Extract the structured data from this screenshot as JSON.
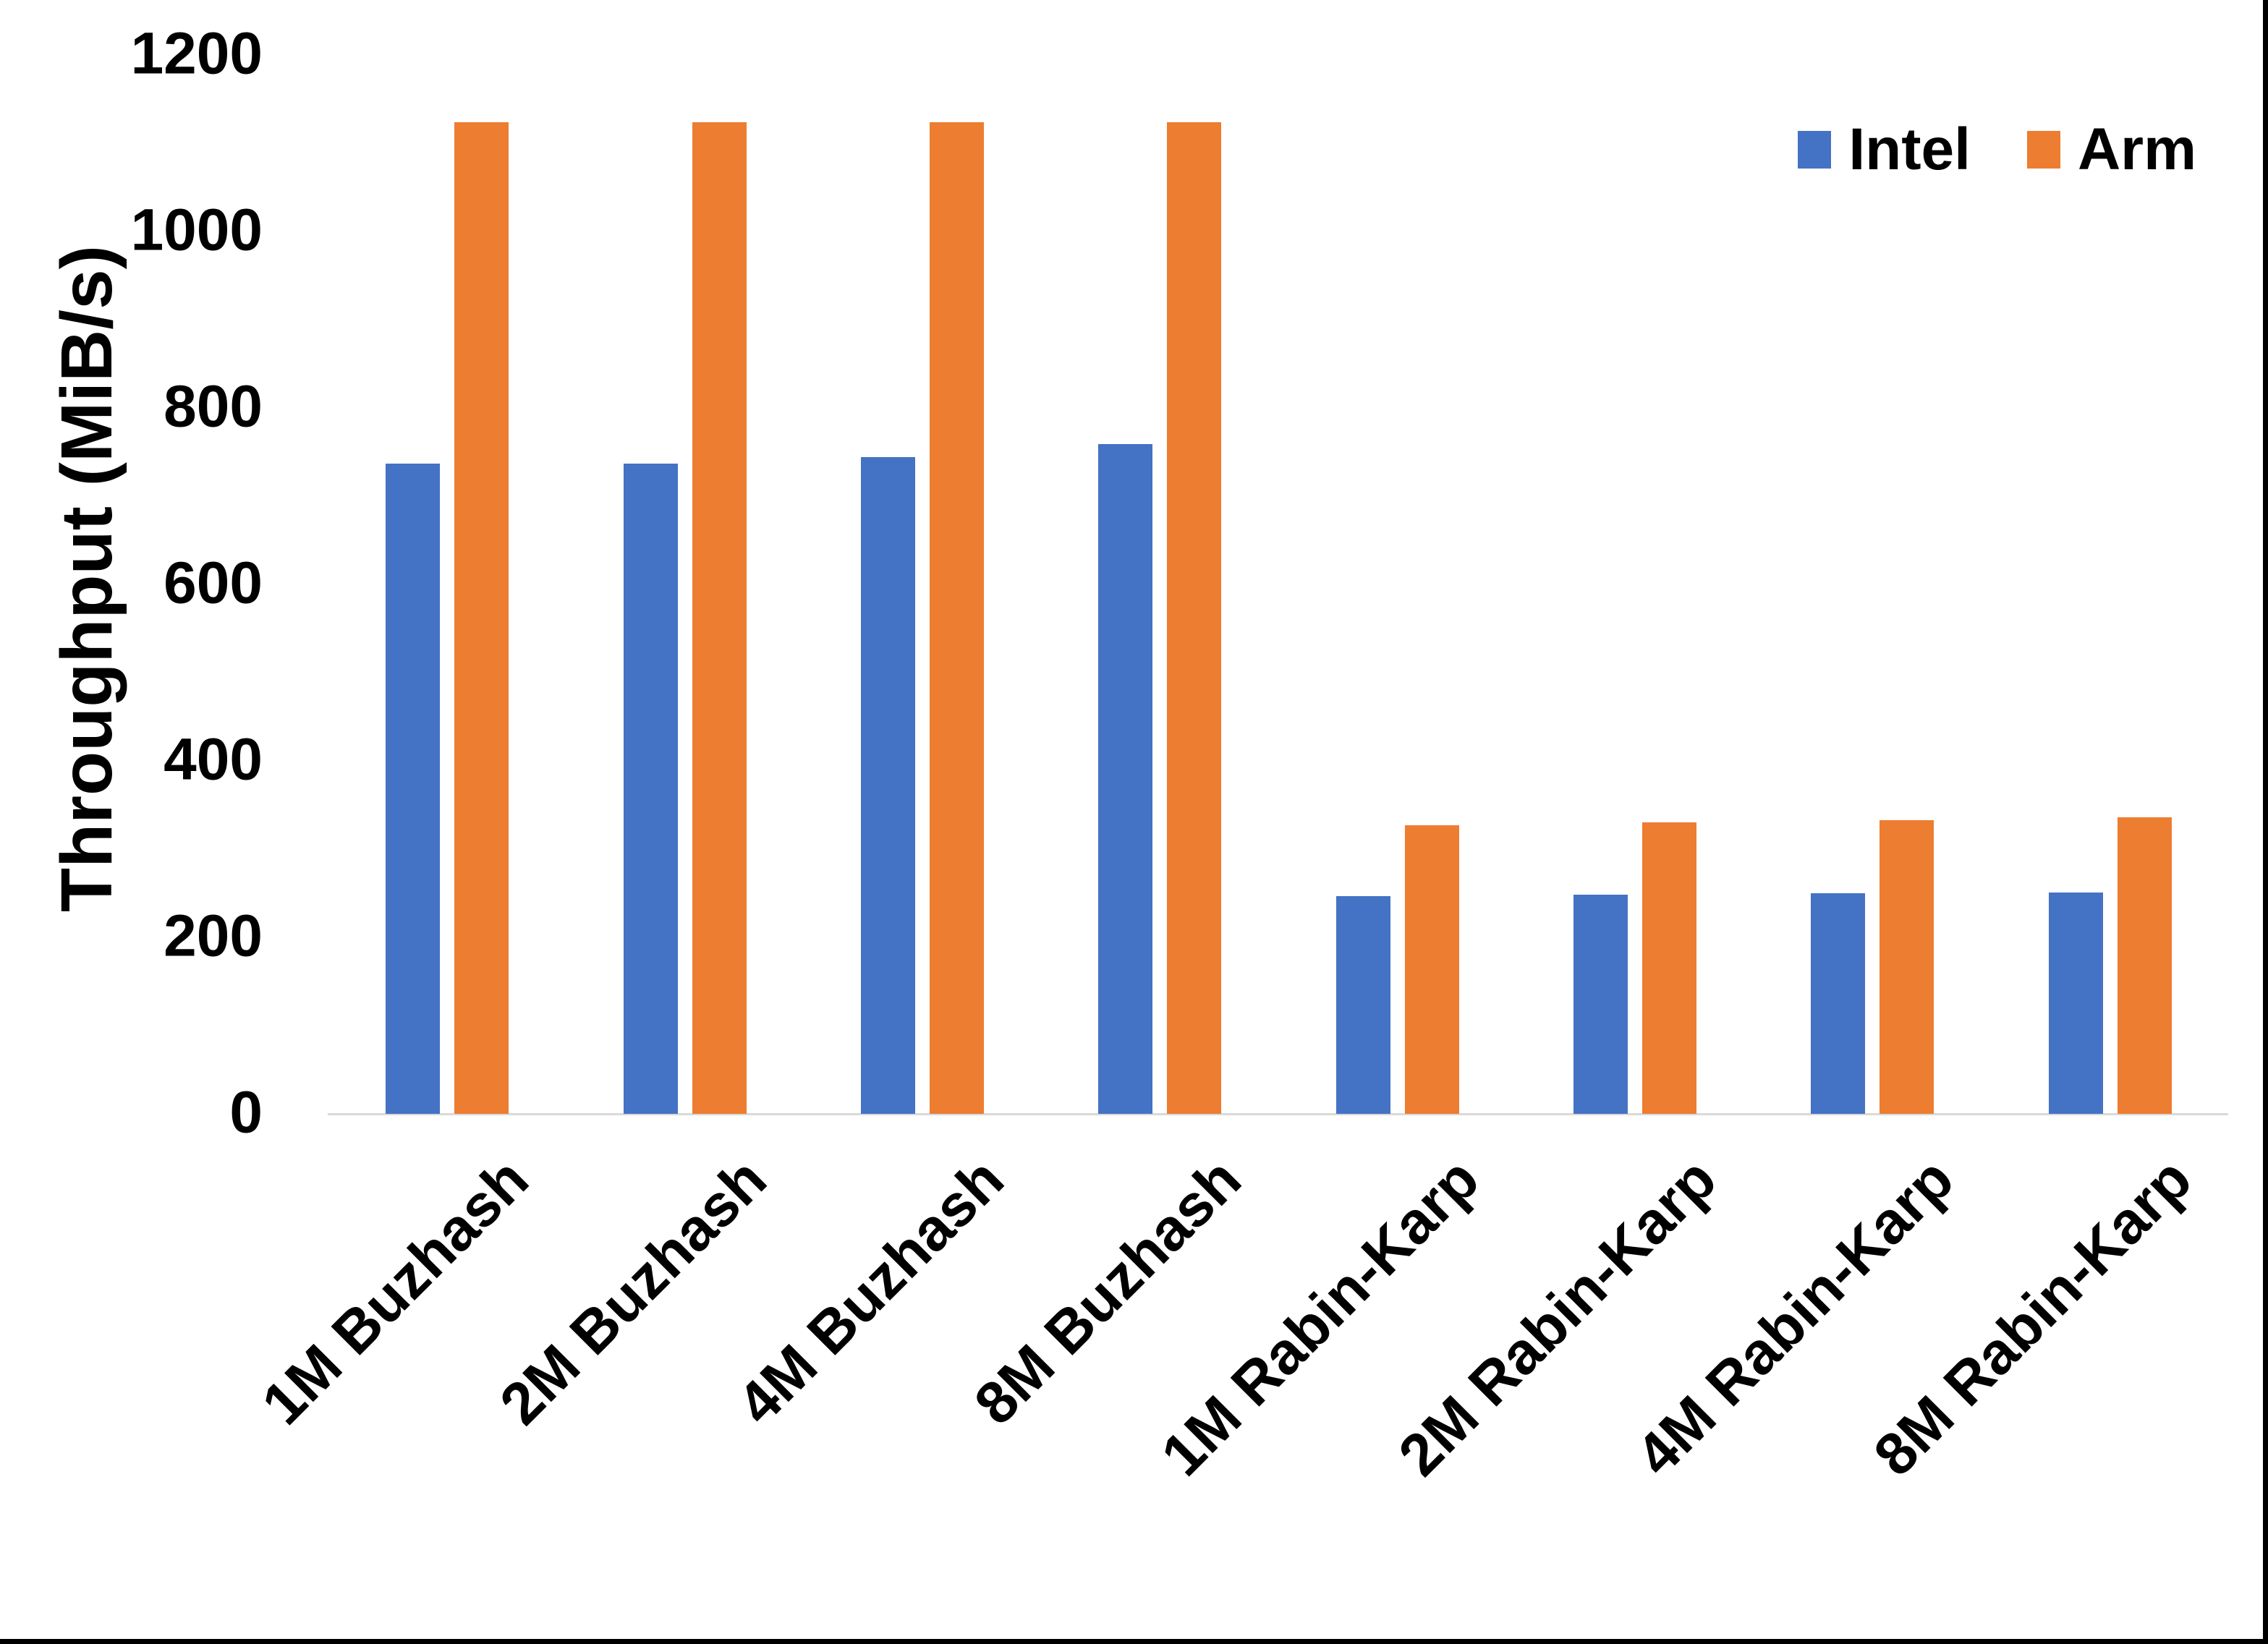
{
  "chart_data": {
    "type": "bar",
    "title": "",
    "ylabel": "Throughput (MiB/s)",
    "categories": [
      "1M Buzhash",
      "2M Buzhash",
      "4M Buzhash",
      "8M Buzhash",
      "1M Rabin-Karp",
      "2M Rabin-Karp",
      "4M Rabin-Karp",
      "8M Rabin-Karp"
    ],
    "series": [
      {
        "name": "Intel",
        "color": "#4472C4",
        "values": [
          737,
          737,
          744,
          759,
          247,
          248,
          250,
          251
        ]
      },
      {
        "name": "Arm",
        "color": "#ED7D31",
        "values": [
          1124,
          1124,
          1124,
          1124,
          327,
          330,
          333,
          336
        ]
      }
    ],
    "yticks": [
      0,
      200,
      400,
      600,
      800,
      1000,
      1200
    ],
    "ylim": [
      0,
      1200
    ],
    "grid": false,
    "legend_position": "top-right",
    "axis_line_color": "#D9D9D9",
    "text_color": "#000000",
    "frame_edge_color": "#000000"
  }
}
